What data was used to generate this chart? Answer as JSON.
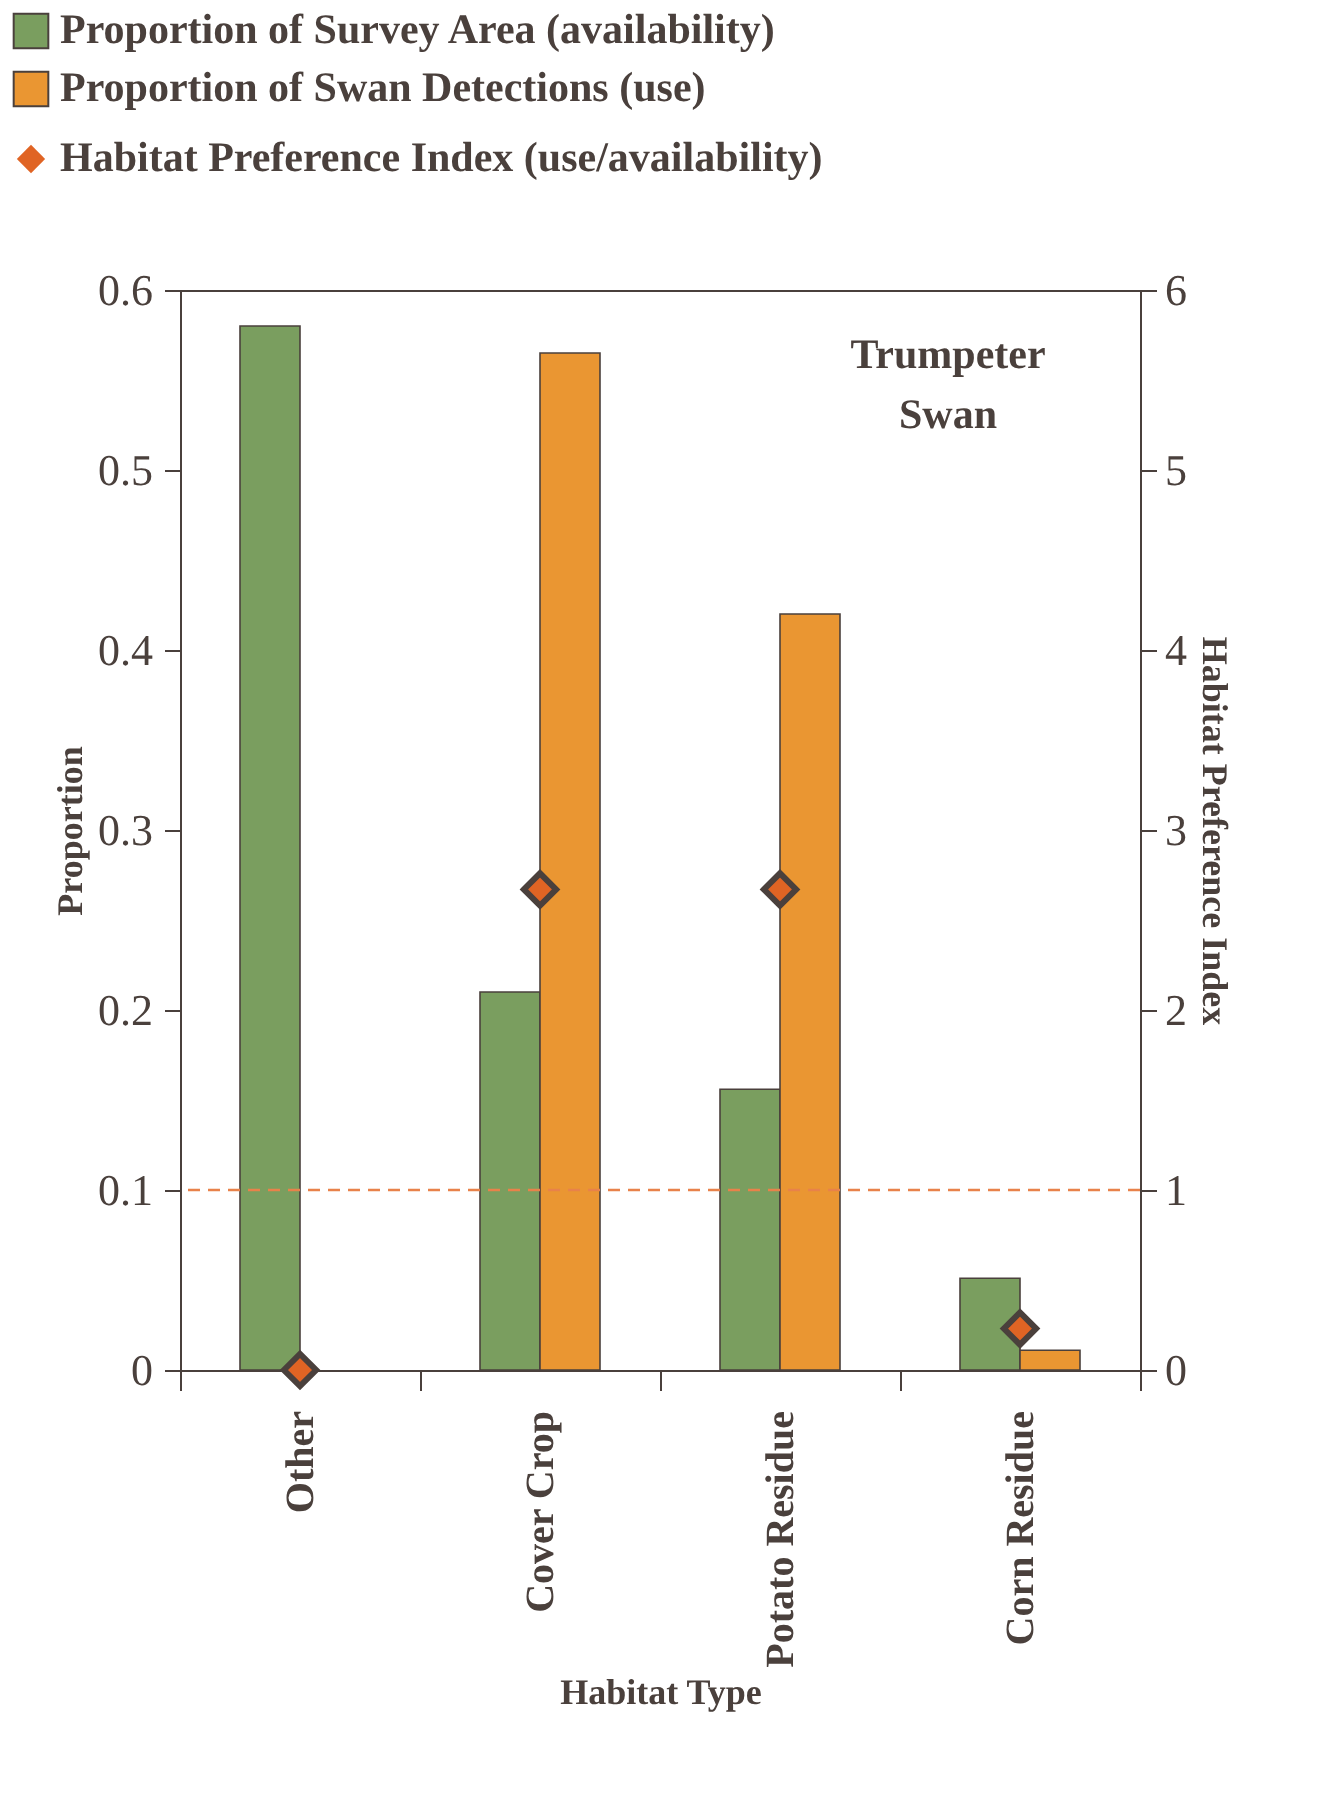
{
  "chart_data": {
    "type": "bar",
    "categories": [
      "Other",
      "Cover Crop",
      "Potato Residue",
      "Corn Residue"
    ],
    "series": [
      {
        "name": "Proportion of Survey Area (availability)",
        "color": "#7a9e5f",
        "values": [
          0.58,
          0.21,
          0.156,
          0.051
        ]
      },
      {
        "name": "Proportion of Swan Detections (use)",
        "color": "#ea9632",
        "values": [
          null,
          0.565,
          0.42,
          0.011
        ]
      },
      {
        "name": "Habitat Preference Index  (use/availability)",
        "type": "scatter",
        "axis": "y2",
        "color": "#e06424",
        "marker": "diamond",
        "values": [
          0,
          2.67,
          2.67,
          0.23
        ]
      }
    ],
    "xlabel": "Habitat Type",
    "ylabel": "Proportion",
    "y2label": "Habitat Preference Index",
    "ylim": [
      0,
      0.6
    ],
    "yticks": [
      {
        "value": 0,
        "label": "0"
      },
      0.1,
      0.2,
      0.3,
      0.4,
      0.5,
      0.6
    ],
    "y2lim": [
      0,
      6
    ],
    "y2ticks": [
      0,
      1,
      2,
      3,
      4,
      5,
      6
    ],
    "ref_lines": [
      {
        "axis": "y2",
        "value": 1,
        "color": "#e8824a",
        "line_style": "dashed"
      }
    ],
    "annotations": [
      "Trumpeter Swan"
    ],
    "grid": false,
    "legend": "top"
  }
}
